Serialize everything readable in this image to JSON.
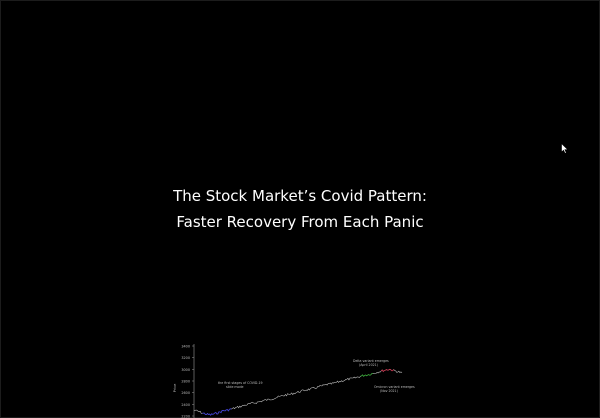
{
  "slide": {
    "title_line1": "The Stock Market’s Covid Pattern:",
    "title_line2": "Faster Recovery From Each Panic"
  },
  "cursor": {
    "icon": "mouse-pointer-icon"
  },
  "chart_data": {
    "type": "line",
    "title": "",
    "xlabel": "",
    "ylabel": "Price",
    "y_ticks": [
      "3400",
      "3200",
      "3000",
      "2800",
      "2600",
      "2400",
      "2200"
    ],
    "ylim": [
      2200,
      3400
    ],
    "grid": false,
    "series": [
      {
        "color": "#c8c8c8",
        "x": [
          0,
          1,
          2,
          3,
          4,
          5,
          6,
          7,
          8,
          9,
          10,
          11,
          12,
          13,
          14,
          15,
          16,
          17,
          18,
          19,
          20,
          21,
          22,
          23,
          24,
          25,
          26,
          27,
          28,
          29,
          30,
          31,
          32,
          33,
          34,
          35,
          36,
          37,
          38,
          39,
          40,
          41,
          42,
          43,
          44,
          45,
          46,
          47,
          48,
          49,
          50
        ],
        "y": [
          2300,
          2280,
          2250,
          2230,
          2220,
          2240,
          2260,
          2290,
          2300,
          2320,
          2340,
          2360,
          2380,
          2400,
          2420,
          2430,
          2450,
          2470,
          2480,
          2500,
          2520,
          2540,
          2560,
          2570,
          2590,
          2610,
          2630,
          2650,
          2660,
          2680,
          2700,
          2720,
          2740,
          2750,
          2770,
          2790,
          2810,
          2830,
          2840,
          2860,
          2880,
          2900,
          2910,
          2930,
          2950,
          2970,
          2990,
          3000,
          2980,
          2960,
          2940
        ]
      }
    ],
    "annotations": [
      {
        "text": "the first stages of COVID-19",
        "color": "#bdbdbd"
      },
      {
        "text": "slide mode",
        "color": "#bdbdbd"
      },
      {
        "text": "Delta variant emerges",
        "color": "#bdbdbd"
      },
      {
        "text": "(April 2021)",
        "color": "#bdbdbd"
      },
      {
        "text": "Omicron variant emerges",
        "color": "#bdbdbd"
      },
      {
        "text": "(Nov 2021)",
        "color": "#bdbdbd"
      }
    ],
    "highlight_colors": {
      "crash": "#3b3bd6",
      "delta": "#2e9c2e",
      "omicron": "#c4344d"
    }
  }
}
